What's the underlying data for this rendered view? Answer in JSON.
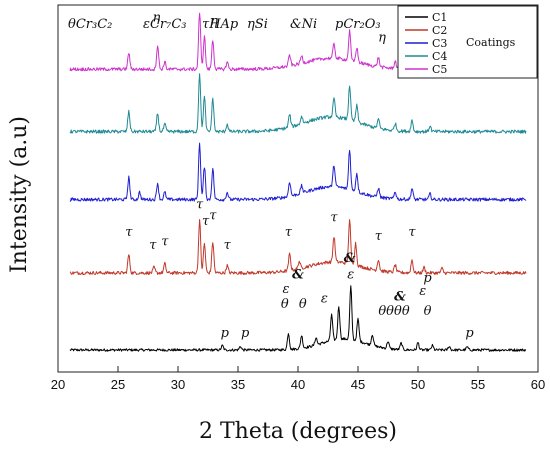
{
  "chart_data": {
    "type": "line",
    "xlabel": "2 Theta (degrees)",
    "ylabel": "Intensity (a.u)",
    "xlim": [
      20,
      60
    ],
    "x_ticks": [
      20,
      25,
      30,
      35,
      40,
      45,
      50,
      55,
      60
    ],
    "y_ticks_shown": false,
    "legend": {
      "placement": "top-right",
      "title": "Coatings",
      "entries": [
        "C1",
        "C2",
        "C3",
        "C4",
        "C5"
      ]
    },
    "phase_key": [
      {
        "symbol": "θ",
        "formula": "Cr₃C₂"
      },
      {
        "symbol": "ε",
        "formula": "Cr₇C₃"
      },
      {
        "symbol": "τ",
        "formula": "HAp"
      },
      {
        "symbol": "η",
        "formula": "Si"
      },
      {
        "symbol": "&",
        "formula": "Ni"
      },
      {
        "symbol": "p",
        "formula": "Cr₂O₃"
      }
    ],
    "series": [
      {
        "name": "C1",
        "color": "#000000",
        "baseline": 0.06,
        "noise": 0.0035,
        "shift": 0.0
      },
      {
        "name": "C2",
        "color": "#c0392b",
        "baseline": 0.27,
        "noise": 0.0045,
        "shift": 0.0
      },
      {
        "name": "C3",
        "color": "#1f1fcf",
        "baseline": 0.47,
        "noise": 0.0045,
        "shift": 0.0
      },
      {
        "name": "C4",
        "color": "#1f8a96",
        "baseline": 0.655,
        "noise": 0.0045,
        "shift": 0.0
      },
      {
        "name": "C5",
        "color": "#cc33cc",
        "baseline": 0.825,
        "noise": 0.0045,
        "shift": 0.0
      }
    ],
    "peaks": {
      "C1": [
        [
          33.7,
          0.012
        ],
        [
          35.2,
          0.01
        ],
        [
          39.2,
          0.045
        ],
        [
          40.3,
          0.035
        ],
        [
          41.5,
          0.02
        ],
        [
          42.8,
          0.07
        ],
        [
          43.4,
          0.09
        ],
        [
          44.4,
          0.145
        ],
        [
          45.0,
          0.06
        ],
        [
          46.2,
          0.03
        ],
        [
          47.5,
          0.02
        ],
        [
          48.6,
          0.018
        ],
        [
          50.0,
          0.02
        ],
        [
          51.2,
          0.012
        ],
        [
          52.6,
          0.01
        ],
        [
          54.1,
          0.008
        ]
      ],
      "C2": [
        [
          25.9,
          0.05
        ],
        [
          28.0,
          0.015
        ],
        [
          28.9,
          0.025
        ],
        [
          31.8,
          0.145
        ],
        [
          32.2,
          0.08
        ],
        [
          32.9,
          0.085
        ],
        [
          34.1,
          0.02
        ],
        [
          39.3,
          0.045
        ],
        [
          40.1,
          0.02
        ],
        [
          43.0,
          0.07
        ],
        [
          44.3,
          0.12
        ],
        [
          44.8,
          0.06
        ],
        [
          46.7,
          0.03
        ],
        [
          48.1,
          0.02
        ],
        [
          49.5,
          0.035
        ],
        [
          50.5,
          0.015
        ],
        [
          52.0,
          0.012
        ]
      ],
      "C3": [
        [
          25.9,
          0.06
        ],
        [
          26.8,
          0.02
        ],
        [
          28.3,
          0.045
        ],
        [
          28.9,
          0.02
        ],
        [
          31.8,
          0.155
        ],
        [
          32.2,
          0.09
        ],
        [
          32.9,
          0.085
        ],
        [
          34.1,
          0.02
        ],
        [
          39.3,
          0.04
        ],
        [
          40.3,
          0.02
        ],
        [
          43.0,
          0.06
        ],
        [
          44.3,
          0.11
        ],
        [
          44.9,
          0.05
        ],
        [
          46.7,
          0.025
        ],
        [
          48.1,
          0.02
        ],
        [
          49.5,
          0.03
        ],
        [
          51.0,
          0.015
        ]
      ],
      "C4": [
        [
          25.9,
          0.055
        ],
        [
          28.3,
          0.05
        ],
        [
          28.9,
          0.02
        ],
        [
          31.8,
          0.16
        ],
        [
          32.2,
          0.095
        ],
        [
          32.9,
          0.09
        ],
        [
          34.1,
          0.02
        ],
        [
          39.3,
          0.035
        ],
        [
          40.3,
          0.02
        ],
        [
          43.0,
          0.05
        ],
        [
          44.3,
          0.095
        ],
        [
          44.9,
          0.045
        ],
        [
          46.7,
          0.025
        ],
        [
          48.1,
          0.02
        ],
        [
          49.5,
          0.03
        ],
        [
          51.0,
          0.015
        ]
      ],
      "C5": [
        [
          25.9,
          0.045
        ],
        [
          28.3,
          0.065
        ],
        [
          28.9,
          0.02
        ],
        [
          31.8,
          0.155
        ],
        [
          32.2,
          0.09
        ],
        [
          32.9,
          0.08
        ],
        [
          34.1,
          0.02
        ],
        [
          39.3,
          0.03
        ],
        [
          40.3,
          0.02
        ],
        [
          43.0,
          0.04
        ],
        [
          44.3,
          0.08
        ],
        [
          44.9,
          0.04
        ],
        [
          46.7,
          0.025
        ],
        [
          48.1,
          0.02
        ],
        [
          49.5,
          0.02
        ],
        [
          56.0,
          0.01
        ]
      ]
    },
    "humps": {
      "C1": [
        [
          43.8,
          2.6,
          0.03
        ]
      ],
      "C2": [
        [
          43.0,
          3.0,
          0.03
        ]
      ],
      "C3": [
        [
          42.8,
          3.0,
          0.035
        ]
      ],
      "C4": [
        [
          42.8,
          3.2,
          0.04
        ]
      ],
      "C5": [
        [
          42.8,
          3.2,
          0.03
        ]
      ]
    },
    "annotations": [
      {
        "text": "η",
        "x": 28.2,
        "y": 0.955
      },
      {
        "text": "η",
        "x": 33.0,
        "y": 0.945
      },
      {
        "text": "η",
        "x": 47.0,
        "y": 0.9
      },
      {
        "text": "η",
        "x": 56.2,
        "y": 0.895
      },
      {
        "text": "τ",
        "x": 25.9,
        "y": 0.37
      },
      {
        "text": "τ",
        "x": 27.9,
        "y": 0.335
      },
      {
        "text": "τ",
        "x": 28.9,
        "y": 0.345
      },
      {
        "text": "τ",
        "x": 31.8,
        "y": 0.445
      },
      {
        "text": "τ",
        "x": 32.3,
        "y": 0.4
      },
      {
        "text": "τ",
        "x": 32.9,
        "y": 0.415
      },
      {
        "text": "τ",
        "x": 34.1,
        "y": 0.335
      },
      {
        "text": "τ",
        "x": 39.2,
        "y": 0.37
      },
      {
        "text": "τ",
        "x": 43.0,
        "y": 0.41
      },
      {
        "text": "τ",
        "x": 46.7,
        "y": 0.36
      },
      {
        "text": "τ",
        "x": 49.5,
        "y": 0.37
      },
      {
        "text": "&",
        "x": 40.0,
        "y": 0.255
      },
      {
        "text": "ε",
        "x": 39.0,
        "y": 0.215
      },
      {
        "text": "θ",
        "x": 38.9,
        "y": 0.175
      },
      {
        "text": "θ",
        "x": 40.4,
        "y": 0.175
      },
      {
        "text": "&",
        "x": 44.3,
        "y": 0.3
      },
      {
        "text": "ε",
        "x": 44.4,
        "y": 0.255
      },
      {
        "text": "ε",
        "x": 42.2,
        "y": 0.19
      },
      {
        "text": "p",
        "x": 33.9,
        "y": 0.095
      },
      {
        "text": "p",
        "x": 35.6,
        "y": 0.095
      },
      {
        "text": "p",
        "x": 50.8,
        "y": 0.245
      },
      {
        "text": "ε",
        "x": 50.4,
        "y": 0.21
      },
      {
        "text": "&",
        "x": 48.5,
        "y": 0.195
      },
      {
        "text": "θθθθ",
        "x": 48.0,
        "y": 0.155
      },
      {
        "text": "θ",
        "x": 50.8,
        "y": 0.155
      },
      {
        "text": "p",
        "x": 54.3,
        "y": 0.095
      }
    ]
  }
}
